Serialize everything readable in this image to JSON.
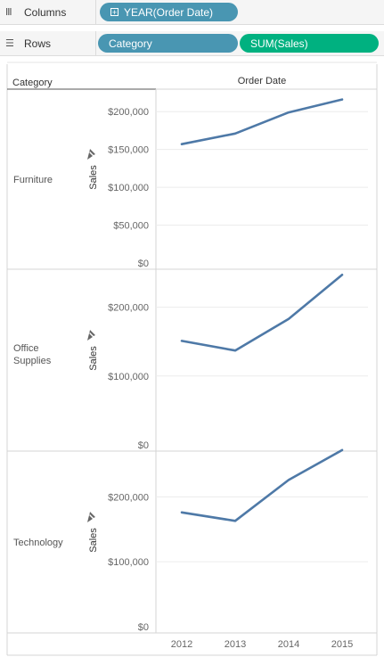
{
  "shelves": {
    "columns": {
      "label": "Columns",
      "icon": "columns-icon",
      "pills": [
        {
          "label": "YEAR(Order Date)",
          "color": "#4996b2",
          "expand_icon": "plus-box-icon"
        }
      ]
    },
    "rows": {
      "label": "Rows",
      "icon": "rows-icon",
      "pills": [
        {
          "label": "Category",
          "color": "#4996b2"
        },
        {
          "label": "SUM(Sales)",
          "color": "#00b180"
        }
      ]
    }
  },
  "chart_data": {
    "type": "line",
    "row_header": "Category",
    "column_header": "Order Date",
    "x": [
      "2012",
      "2013",
      "2014",
      "2015"
    ],
    "measure_label": "Sales",
    "pin_icon": "pin-icon",
    "line_color": "#4e79a7",
    "grid": true,
    "panes": [
      {
        "category": [
          "Furniture"
        ],
        "ylim": [
          0,
          225000
        ],
        "ticks": [
          {
            "value": 0,
            "label": "$0"
          },
          {
            "value": 50000,
            "label": "$50,000"
          },
          {
            "value": 100000,
            "label": "$100,000"
          },
          {
            "value": 150000,
            "label": "$150,000"
          },
          {
            "value": 200000,
            "label": "$200,000"
          }
        ],
        "values": [
          157000,
          171000,
          199000,
          216000
        ]
      },
      {
        "category": [
          "Office",
          "Supplies"
        ],
        "ylim": [
          0,
          250000
        ],
        "ticks": [
          {
            "value": 0,
            "label": "$0"
          },
          {
            "value": 100000,
            "label": "$100,000"
          },
          {
            "value": 200000,
            "label": "$200,000"
          }
        ],
        "values": [
          151000,
          137000,
          183000,
          247000
        ]
      },
      {
        "category": [
          "Technology"
        ],
        "ylim": [
          0,
          265000
        ],
        "ticks": [
          {
            "value": 0,
            "label": "$0"
          },
          {
            "value": 100000,
            "label": "$100,000"
          },
          {
            "value": 200000,
            "label": "$200,000"
          }
        ],
        "values": [
          176000,
          163000,
          226000,
          272000
        ]
      }
    ]
  }
}
